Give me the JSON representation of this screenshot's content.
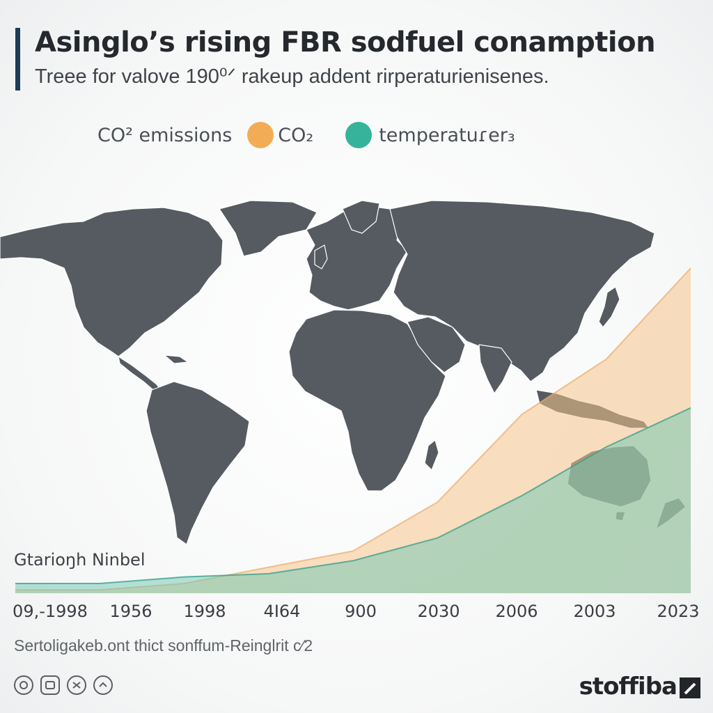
{
  "header": {
    "title": "Asinglo’s rising FBR sodfuel conamption",
    "subtitle": "Treee for valove 190⁰ᐟ rakeup addent rirperaturienisenes."
  },
  "legend": {
    "lead": "CO² emissions",
    "items": [
      {
        "label": "CO₂",
        "color": "#f3ac56"
      },
      {
        "label": "temperatuɾer₃",
        "color": "#36b49b"
      }
    ]
  },
  "map_label": "Gtarioŋh Ninbel",
  "source": "Sertoligakeb.ont thict sonffum-Reinglrit c⁄2",
  "brand": "stoffiba",
  "footer_icons": [
    "copyright-icon",
    "image-icon",
    "scissors-icon",
    "chevron-up-icon"
  ],
  "chart_data": {
    "type": "area",
    "title": "Asinglo’s rising FBR sodfuel conamption",
    "subtitle": "Treee for valove 190⁰ᐟ rakeup addent rirperaturienisenes.",
    "x": [
      "09,-1998",
      "1956",
      "1998",
      "4I64",
      "900",
      "2030",
      "2006",
      "2003",
      "2023"
    ],
    "series": [
      {
        "name": "CO₂",
        "color": "#f3ac56",
        "values": [
          0.01,
          0.01,
          0.03,
          0.08,
          0.13,
          0.28,
          0.55,
          0.72,
          1.0
        ]
      },
      {
        "name": "temperatuɾer₃",
        "color": "#36b49b",
        "values": [
          0.03,
          0.03,
          0.05,
          0.06,
          0.1,
          0.17,
          0.3,
          0.45,
          0.57
        ]
      }
    ],
    "ylim": [
      0,
      1
    ],
    "grid": false,
    "legend_position": "top"
  }
}
